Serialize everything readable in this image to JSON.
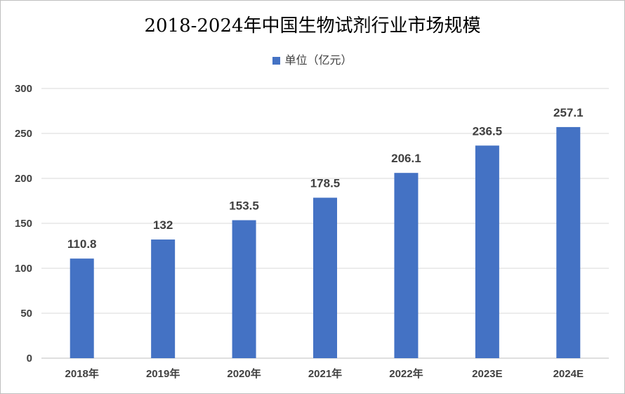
{
  "chart_data": {
    "type": "bar",
    "title": "2018-2024年中国生物试剂行业市场规模",
    "legend": [
      "单位（亿元）"
    ],
    "legend_position": "top",
    "categories": [
      "2018年",
      "2019年",
      "2020年",
      "2021年",
      "2022年",
      "2023E",
      "2024E"
    ],
    "values": [
      110.8,
      132,
      153.5,
      178.5,
      206.1,
      236.5,
      257.1
    ],
    "value_labels": [
      "110.8",
      "132",
      "153.5",
      "178.5",
      "206.1",
      "236.5",
      "257.1"
    ],
    "ylim": [
      0,
      300
    ],
    "yticks": [
      0,
      50,
      100,
      150,
      200,
      250,
      300
    ],
    "grid": true,
    "xlabel": "",
    "ylabel": "",
    "color": "#4472C4"
  }
}
